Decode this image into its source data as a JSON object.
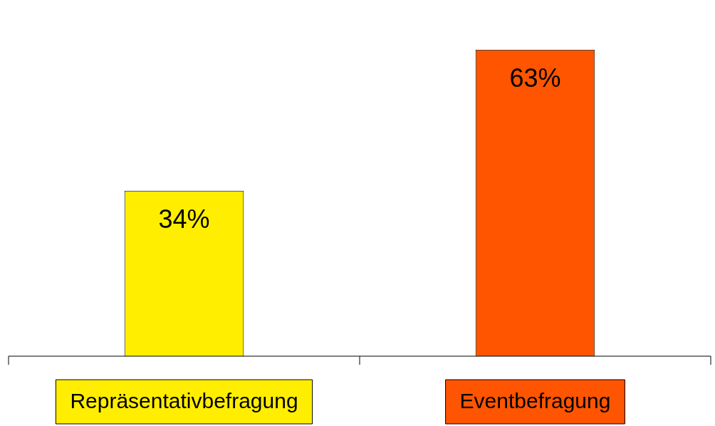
{
  "chart_data": {
    "type": "bar",
    "categories": [
      "Repräsentativbefragung",
      "Eventbefragung"
    ],
    "values": [
      34,
      63
    ],
    "colors": [
      "#ffee00",
      "#ff5500"
    ],
    "data_labels": true,
    "value_labels": [
      "34%",
      "63%"
    ],
    "grid": false,
    "legend": false
  }
}
